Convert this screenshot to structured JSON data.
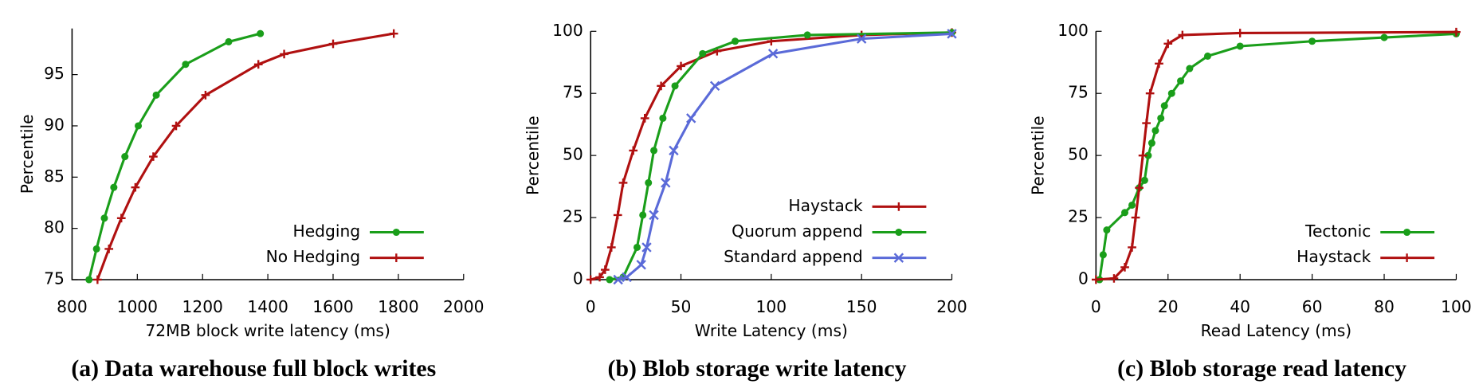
{
  "chart_data": [
    {
      "type": "line",
      "title": "(a) Data warehouse full block writes",
      "xlabel": "72MB block write latency (ms)",
      "ylabel": "Percentile",
      "xlim": [
        800,
        2000
      ],
      "ylim": [
        75,
        99.5
      ],
      "xticks": [
        800,
        1000,
        1200,
        1400,
        1600,
        1800,
        2000
      ],
      "yticks": [
        75,
        80,
        85,
        90,
        95
      ],
      "legend": "lower right",
      "series": [
        {
          "name": "Hedging",
          "color": "#1a9e1a",
          "marker": "circle",
          "x": [
            852,
            875,
            899,
            928,
            962,
            1003,
            1058,
            1148,
            1280,
            1377
          ],
          "values": [
            75,
            78,
            81,
            84,
            87,
            90,
            93,
            96,
            98.2,
            99
          ]
        },
        {
          "name": "No Hedging",
          "color": "#b01010",
          "marker": "plus",
          "x": [
            878,
            913,
            951,
            994,
            1049,
            1119,
            1209,
            1371,
            1450,
            1600,
            1786
          ],
          "values": [
            75,
            78,
            81,
            84,
            87,
            90,
            93,
            96,
            97,
            98,
            99
          ]
        }
      ]
    },
    {
      "type": "line",
      "title": "(b) Blob storage write latency",
      "xlabel": "Write Latency (ms)",
      "ylabel": "Percentile",
      "xlim": [
        0,
        200
      ],
      "ylim": [
        0,
        100
      ],
      "xticks": [
        0,
        50,
        100,
        150,
        200
      ],
      "yticks": [
        0,
        25,
        50,
        75,
        100
      ],
      "legend": "lower right",
      "series": [
        {
          "name": "Haystack",
          "color": "#b01010",
          "marker": "plus",
          "x": [
            0,
            5,
            8,
            11.5,
            15,
            18,
            23.6,
            30,
            39,
            50,
            70,
            100,
            150,
            200
          ],
          "values": [
            0,
            1,
            4,
            13,
            26,
            39,
            52,
            65,
            78,
            86,
            92,
            96,
            98.5,
            99.5
          ]
        },
        {
          "name": "Quorum append",
          "color": "#1a9e1a",
          "marker": "circle",
          "x": [
            10.5,
            18,
            25.7,
            28.9,
            32,
            35,
            40,
            46.7,
            62,
            80,
            120,
            200
          ],
          "values": [
            0,
            1,
            13,
            26,
            39,
            52,
            65,
            78,
            91,
            96,
            98.5,
            99.5
          ]
        },
        {
          "name": "Standard append",
          "color": "#5a6ad8",
          "marker": "cross",
          "x": [
            15.2,
            20,
            28,
            31,
            35,
            41.5,
            46,
            55.6,
            68.8,
            101,
            150,
            200
          ],
          "values": [
            0,
            1,
            6,
            13,
            26,
            39,
            52,
            65,
            78,
            91,
            97,
            99
          ]
        }
      ]
    },
    {
      "type": "line",
      "title": "(c) Blob storage read latency",
      "xlabel": "Read Latency (ms)",
      "ylabel": "Percentile",
      "xlim": [
        0,
        100
      ],
      "ylim": [
        0,
        100
      ],
      "xticks": [
        0,
        20,
        40,
        60,
        80,
        100
      ],
      "yticks": [
        0,
        25,
        50,
        75,
        100
      ],
      "legend": "lower right",
      "series": [
        {
          "name": "Tectonic",
          "color": "#1a9e1a",
          "marker": "circle",
          "x": [
            1,
            2,
            3,
            8,
            10,
            12,
            13.5,
            14.5,
            15.5,
            16.5,
            18,
            19,
            21,
            23.5,
            26,
            31,
            40,
            60,
            80,
            100
          ],
          "values": [
            0,
            10,
            20,
            27,
            30,
            37,
            40,
            50,
            55,
            60,
            65,
            70,
            75,
            80,
            85,
            90,
            94,
            96,
            97.5,
            99
          ]
        },
        {
          "name": "Haystack",
          "color": "#b01010",
          "marker": "plus",
          "x": [
            0,
            5,
            8,
            10,
            11,
            12,
            13,
            14,
            15,
            17.5,
            20,
            24,
            40,
            100
          ],
          "values": [
            0,
            0.5,
            5,
            13,
            25,
            37,
            50,
            63,
            75,
            87,
            95,
            98.5,
            99.3,
            99.7
          ]
        }
      ]
    }
  ]
}
